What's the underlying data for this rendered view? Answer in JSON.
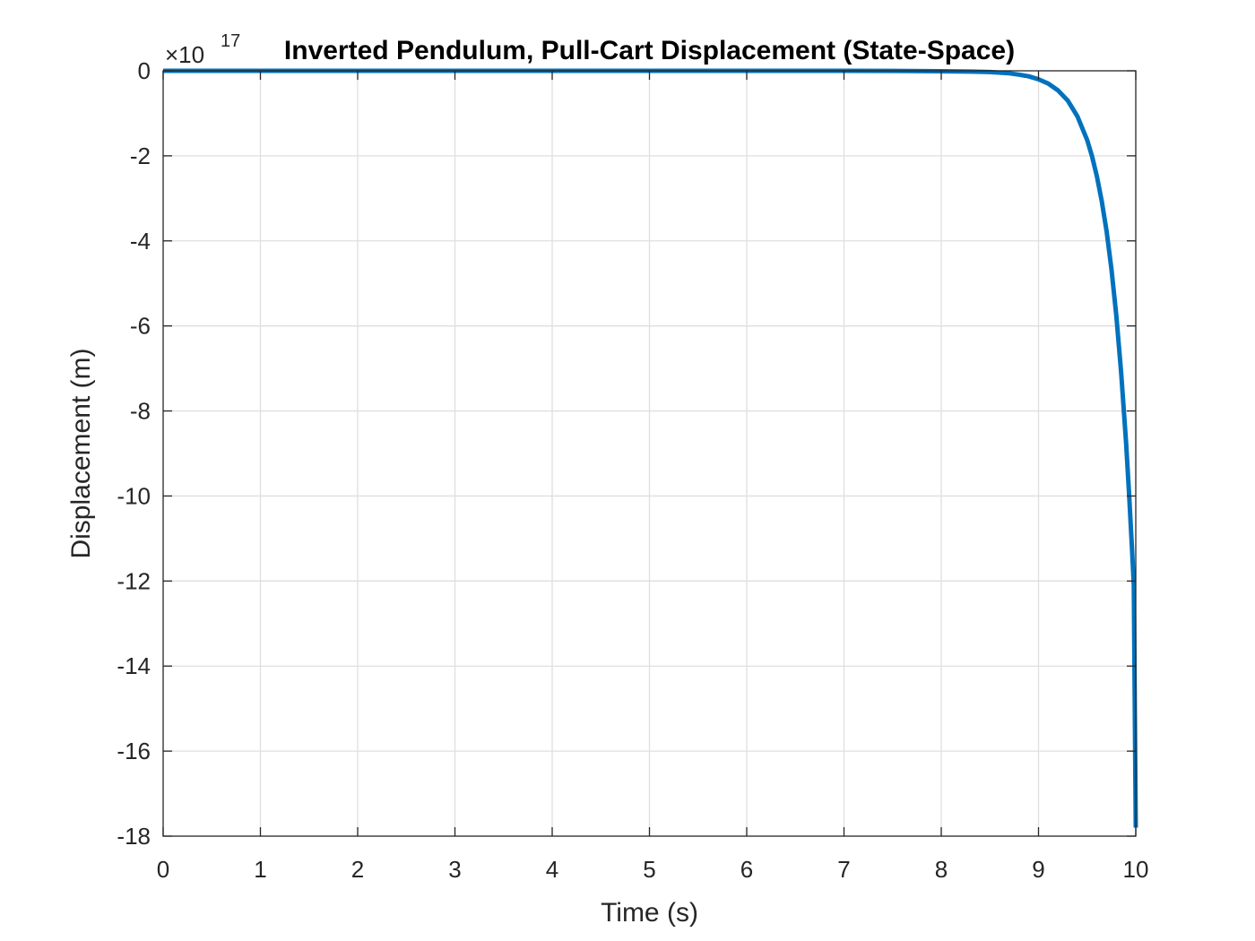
{
  "chart_data": {
    "type": "line",
    "title": "Inverted Pendulum, Pull-Cart Displacement (State-Space)",
    "xlabel": "Time (s)",
    "ylabel": "Displacement (m)",
    "xlim": [
      0,
      10
    ],
    "ylim": [
      -18,
      0
    ],
    "y_exponent_label": "×10",
    "y_exponent_power": "17",
    "y_scale_factor": 1e+17,
    "grid": true,
    "xticks": [
      0,
      1,
      2,
      3,
      4,
      5,
      6,
      7,
      8,
      9,
      10
    ],
    "xtick_labels": [
      "0",
      "1",
      "2",
      "3",
      "4",
      "5",
      "6",
      "7",
      "8",
      "9",
      "10"
    ],
    "yticks": [
      0,
      -2,
      -4,
      -6,
      -8,
      -10,
      -12,
      -14,
      -16,
      -18
    ],
    "ytick_labels": [
      "0",
      "-2",
      "-4",
      "-6",
      "-8",
      "-10",
      "-12",
      "-14",
      "-16",
      "-18"
    ],
    "series": [
      {
        "color": "#0072BD",
        "x": [
          0,
          1,
          2,
          3,
          4,
          5,
          6,
          7,
          7.5,
          8,
          8.3,
          8.5,
          8.7,
          8.8,
          8.9,
          9.0,
          9.1,
          9.2,
          9.3,
          9.4,
          9.5,
          9.55,
          9.6,
          9.65,
          9.7,
          9.75,
          9.8,
          9.85,
          9.9,
          9.93,
          9.96,
          9.98,
          10.0
        ],
        "y": [
          0,
          0,
          0,
          0,
          0,
          0,
          0,
          -0.001,
          -0.003,
          -0.01,
          -0.02,
          -0.03,
          -0.06,
          -0.09,
          -0.13,
          -0.2,
          -0.3,
          -0.46,
          -0.7,
          -1.07,
          -1.63,
          -2.01,
          -2.48,
          -3.06,
          -3.78,
          -4.67,
          -5.76,
          -7.1,
          -8.75,
          -9.9,
          -11.2,
          -12.1,
          -17.8
        ]
      }
    ]
  }
}
